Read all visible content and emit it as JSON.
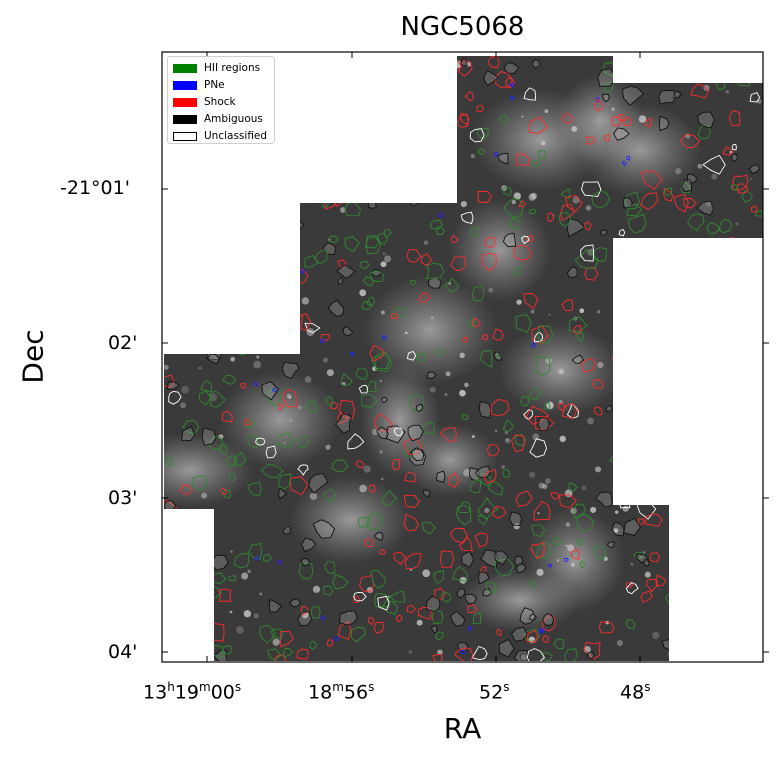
{
  "title": "NGC5068",
  "x_axis": {
    "label": "RA",
    "ticks": [
      {
        "main": "13",
        "s1": "h",
        "p2": "19",
        "s2": "m",
        "p3": "00",
        "s3": "s"
      },
      {
        "main": "18",
        "s1": "m",
        "p2": "56",
        "s2": "s",
        "p3": "",
        "s3": ""
      },
      {
        "main": "52",
        "s1": "s",
        "p2": "",
        "s2": "",
        "p3": "",
        "s3": ""
      },
      {
        "main": "48",
        "s1": "s",
        "p2": "",
        "s2": "",
        "p3": "",
        "s3": ""
      }
    ]
  },
  "y_axis": {
    "label": "Dec",
    "ticks": [
      "-21°01'",
      "02'",
      "03'",
      "04'"
    ]
  },
  "legend": {
    "entries": [
      {
        "label": "HII regions",
        "color": "#008000",
        "filled": true
      },
      {
        "label": "PNe",
        "color": "#0000ff",
        "filled": true
      },
      {
        "label": "Shock",
        "color": "#ff0000",
        "filled": true
      },
      {
        "label": "Ambiguous",
        "color": "#000000",
        "filled": true
      },
      {
        "label": "Unclassified",
        "color": "#000000",
        "filled": false
      }
    ]
  },
  "colors": {
    "background": "#ffffff",
    "hii": "#2e8b2e",
    "pne": "#2020ff",
    "shock": "#ff2a2a",
    "ambiguous": "#111111"
  }
}
